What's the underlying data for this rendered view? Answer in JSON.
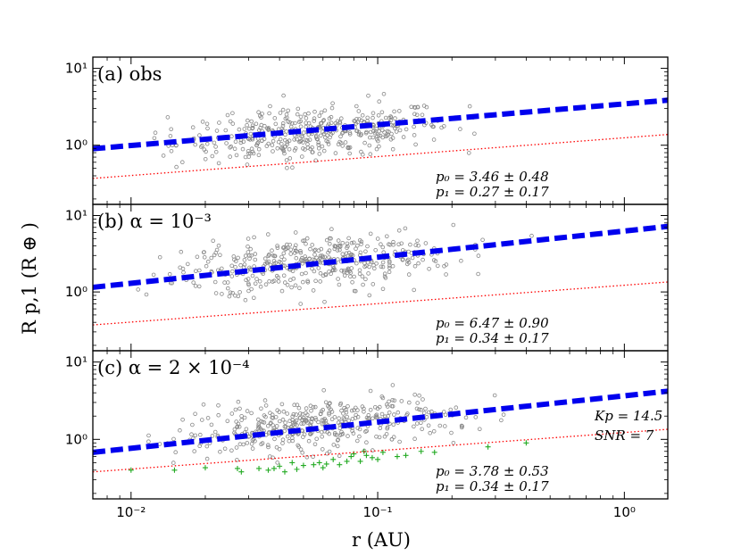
{
  "chart_data": [
    {
      "type": "scatter",
      "panel_label": "(a) obs",
      "xscale": "log",
      "yscale": "log",
      "xlim": [
        0.007,
        1.5
      ],
      "ylim": [
        0.17,
        14
      ],
      "yticks": [
        {
          "value": 1,
          "label": "10⁰"
        },
        {
          "value": 10,
          "label": "10¹"
        }
      ],
      "fit_line": {
        "color": "#0000ee",
        "style": "dashed",
        "points": [
          [
            0.007,
            0.9
          ],
          [
            1.5,
            3.85
          ]
        ]
      },
      "threshold_line": {
        "color": "#ff0000",
        "style": "dotted",
        "points": [
          [
            0.007,
            0.37
          ],
          [
            1.5,
            1.38
          ]
        ]
      },
      "annotations": [
        "p₀ = 3.46 ± 0.48",
        "p₁ = 0.27 ± 0.17"
      ],
      "n_points": 420,
      "center": 1.45,
      "spread": 0.32
    },
    {
      "type": "scatter",
      "panel_label": "(b) α = 10⁻³",
      "xscale": "log",
      "yscale": "log",
      "xlim": [
        0.007,
        1.5
      ],
      "ylim": [
        0.17,
        14
      ],
      "yticks": [
        {
          "value": 1,
          "label": "10⁰"
        },
        {
          "value": 10,
          "label": "10¹"
        }
      ],
      "fit_line": {
        "color": "#0000ee",
        "style": "dashed",
        "points": [
          [
            0.007,
            1.15
          ],
          [
            1.5,
            7.2
          ]
        ]
      },
      "threshold_line": {
        "color": "#ff0000",
        "style": "dotted",
        "points": [
          [
            0.007,
            0.37
          ],
          [
            1.5,
            1.35
          ]
        ]
      },
      "annotations": [
        "p₀ = 6.47 ± 0.90",
        "p₁ = 0.34 ± 0.17"
      ],
      "n_points": 420,
      "center": 2.4,
      "spread": 0.36
    },
    {
      "type": "scatter",
      "panel_label": "(c) α = 2 × 10⁻⁴",
      "xscale": "log",
      "yscale": "log",
      "xlim": [
        0.007,
        1.5
      ],
      "ylim": [
        0.17,
        14
      ],
      "yticks": [
        {
          "value": 1,
          "label": "10⁰"
        },
        {
          "value": 10,
          "label": "10¹"
        }
      ],
      "fit_line": {
        "color": "#0000ee",
        "style": "dashed",
        "points": [
          [
            0.007,
            0.68
          ],
          [
            1.5,
            4.2
          ]
        ]
      },
      "threshold_line": {
        "color": "#ff0000",
        "style": "dotted",
        "points": [
          [
            0.007,
            0.38
          ],
          [
            1.5,
            1.35
          ]
        ]
      },
      "annotations": [
        "p₀ = 3.78 ± 0.53",
        "p₁ = 0.34 ± 0.17"
      ],
      "extra_annotations": [
        "Kp = 14.5",
        "SNR = 7"
      ],
      "n_points": 420,
      "center": 1.55,
      "spread": 0.34,
      "rejected_points": {
        "marker": "+",
        "color": "#22aa22",
        "points": [
          [
            0.01,
            0.4
          ],
          [
            0.015,
            0.4
          ],
          [
            0.02,
            0.43
          ],
          [
            0.027,
            0.42
          ],
          [
            0.028,
            0.38
          ],
          [
            0.033,
            0.42
          ],
          [
            0.036,
            0.4
          ],
          [
            0.038,
            0.42
          ],
          [
            0.04,
            0.45
          ],
          [
            0.042,
            0.38
          ],
          [
            0.045,
            0.5
          ],
          [
            0.047,
            0.41
          ],
          [
            0.05,
            0.46
          ],
          [
            0.055,
            0.47
          ],
          [
            0.058,
            0.5
          ],
          [
            0.06,
            0.43
          ],
          [
            0.062,
            0.48
          ],
          [
            0.066,
            0.55
          ],
          [
            0.07,
            0.47
          ],
          [
            0.075,
            0.52
          ],
          [
            0.078,
            0.6
          ],
          [
            0.08,
            0.65
          ],
          [
            0.085,
            0.52
          ],
          [
            0.088,
            0.7
          ],
          [
            0.09,
            0.62
          ],
          [
            0.095,
            0.58
          ],
          [
            0.1,
            0.55
          ],
          [
            0.105,
            0.68
          ],
          [
            0.12,
            0.6
          ],
          [
            0.13,
            0.62
          ],
          [
            0.15,
            0.7
          ],
          [
            0.17,
            0.68
          ],
          [
            0.28,
            0.8
          ],
          [
            0.4,
            0.9
          ]
        ]
      }
    }
  ],
  "axes": {
    "xlabel": "r (AU)",
    "ylabel": "R p,1 (R ⊕ )",
    "xticks": [
      {
        "value": 0.01,
        "label": "10⁻²"
      },
      {
        "value": 0.1,
        "label": "10⁻¹"
      },
      {
        "value": 1,
        "label": "10⁰"
      }
    ]
  },
  "colors": {
    "points": "#888888",
    "fit": "#0000ee",
    "threshold": "#ff0000",
    "rejected": "#22aa22"
  }
}
